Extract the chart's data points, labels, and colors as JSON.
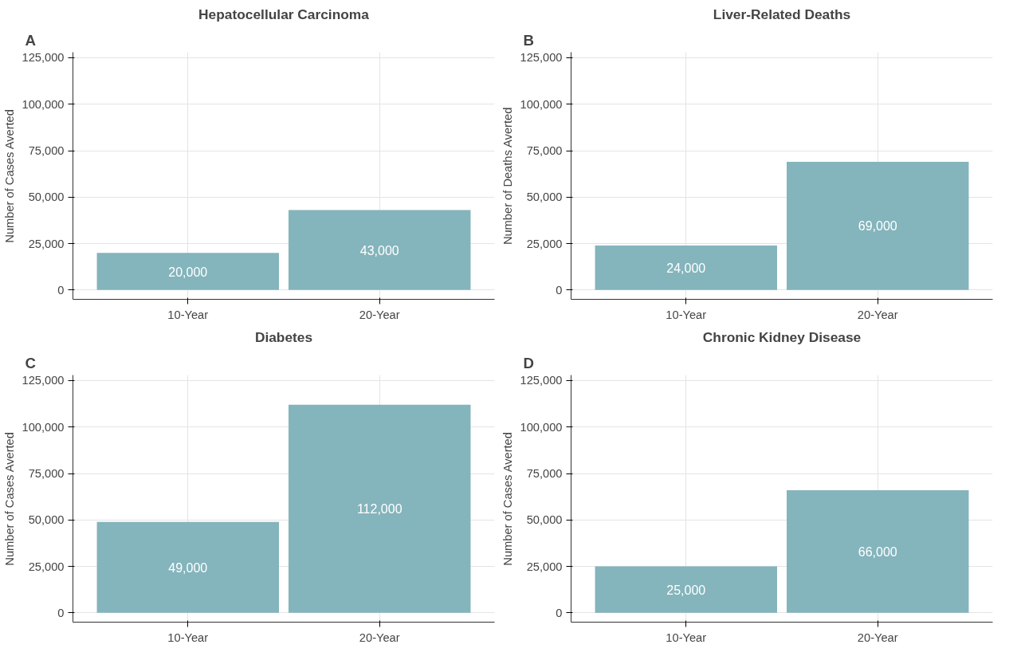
{
  "chart_data": [
    {
      "type": "bar",
      "title": "Hepatocellular Carcinoma",
      "ylabel": "Number of Cases Averted",
      "annotations": [
        "A"
      ],
      "categories": [
        "10-Year",
        "20-Year"
      ],
      "values": [
        20000,
        43000
      ],
      "value_labels": [
        "20,000",
        "43,000"
      ],
      "color": "#84b4bc",
      "ylim": [
        -5000,
        128000
      ],
      "yticks": [
        {
          "value": 0,
          "label": "0"
        },
        {
          "value": 25000,
          "label": "25,000"
        },
        {
          "value": 50000,
          "label": "50,000"
        },
        {
          "value": 75000,
          "label": "75,000"
        },
        {
          "value": 100000,
          "label": "100,000"
        },
        {
          "value": 125000,
          "label": "125,000"
        }
      ],
      "grid": true
    },
    {
      "type": "bar",
      "title": "Liver-Related Deaths",
      "ylabel": "Number of Deaths Averted",
      "annotations": [
        "B"
      ],
      "categories": [
        "10-Year",
        "20-Year"
      ],
      "values": [
        24000,
        69000
      ],
      "value_labels": [
        "24,000",
        "69,000"
      ],
      "color": "#84b4bc",
      "ylim": [
        -5000,
        128000
      ],
      "yticks": [
        {
          "value": 0,
          "label": "0"
        },
        {
          "value": 25000,
          "label": "25,000"
        },
        {
          "value": 50000,
          "label": "50,000"
        },
        {
          "value": 75000,
          "label": "75,000"
        },
        {
          "value": 100000,
          "label": "100,000"
        },
        {
          "value": 125000,
          "label": "125,000"
        }
      ],
      "grid": true
    },
    {
      "type": "bar",
      "title": "Diabetes",
      "ylabel": "Number of Cases Averted",
      "annotations": [
        "C"
      ],
      "categories": [
        "10-Year",
        "20-Year"
      ],
      "values": [
        49000,
        112000
      ],
      "value_labels": [
        "49,000",
        "112,000"
      ],
      "color": "#84b4bc",
      "ylim": [
        -5000,
        128000
      ],
      "yticks": [
        {
          "value": 0,
          "label": "0"
        },
        {
          "value": 25000,
          "label": "25,000"
        },
        {
          "value": 50000,
          "label": "50,000"
        },
        {
          "value": 75000,
          "label": "75,000"
        },
        {
          "value": 100000,
          "label": "100,000"
        },
        {
          "value": 125000,
          "label": "125,000"
        }
      ],
      "grid": true
    },
    {
      "type": "bar",
      "title": "Chronic Kidney Disease",
      "ylabel": "Number of Cases Averted",
      "annotations": [
        "D"
      ],
      "categories": [
        "10-Year",
        "20-Year"
      ],
      "values": [
        25000,
        66000
      ],
      "value_labels": [
        "25,000",
        "66,000"
      ],
      "color": "#84b4bc",
      "ylim": [
        -5000,
        128000
      ],
      "yticks": [
        {
          "value": 0,
          "label": "0"
        },
        {
          "value": 25000,
          "label": "25,000"
        },
        {
          "value": 50000,
          "label": "50,000"
        },
        {
          "value": 75000,
          "label": "75,000"
        },
        {
          "value": 100000,
          "label": "100,000"
        },
        {
          "value": 125000,
          "label": "125,000"
        }
      ],
      "grid": true
    }
  ]
}
